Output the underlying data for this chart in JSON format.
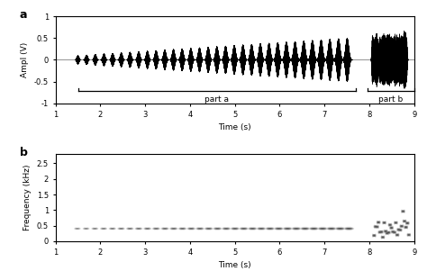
{
  "fig_width": 4.74,
  "fig_height": 3.01,
  "dpi": 100,
  "background_color": "#ffffff",
  "panel_a": {
    "label": "a",
    "ylabel": "Ampl (V)",
    "xlabel": "Time (s)",
    "xlim": [
      1,
      9
    ],
    "ylim": [
      -1,
      1
    ],
    "yticks": [
      -1,
      -0.5,
      0,
      0.5,
      1
    ],
    "xticks": [
      1,
      2,
      3,
      4,
      5,
      6,
      7,
      8,
      9
    ],
    "part_a_xrange": [
      1.5,
      7.7
    ],
    "part_b_xrange": [
      7.95,
      9.0
    ],
    "part_a_label": "part a",
    "part_b_label": "part b",
    "bracket_y": -0.72,
    "signal_color": "#000000",
    "num_pulses_part_a": 32,
    "pulse_start": 1.5,
    "pulse_end": 7.7,
    "part_b_start": 8.05,
    "part_b_end": 8.85
  },
  "panel_b": {
    "label": "b",
    "ylabel": "Frequency (kHz)",
    "xlabel": "Time (s)",
    "xlim": [
      1,
      9
    ],
    "ylim": [
      0,
      2800
    ],
    "yticks": [
      0,
      500,
      1000,
      1500,
      2000,
      2500
    ],
    "yticklabels": [
      "0",
      "0.5",
      "1",
      "1.5",
      "2",
      "2.5"
    ],
    "xticks": [
      1,
      2,
      3,
      4,
      5,
      6,
      7,
      8,
      9
    ]
  }
}
